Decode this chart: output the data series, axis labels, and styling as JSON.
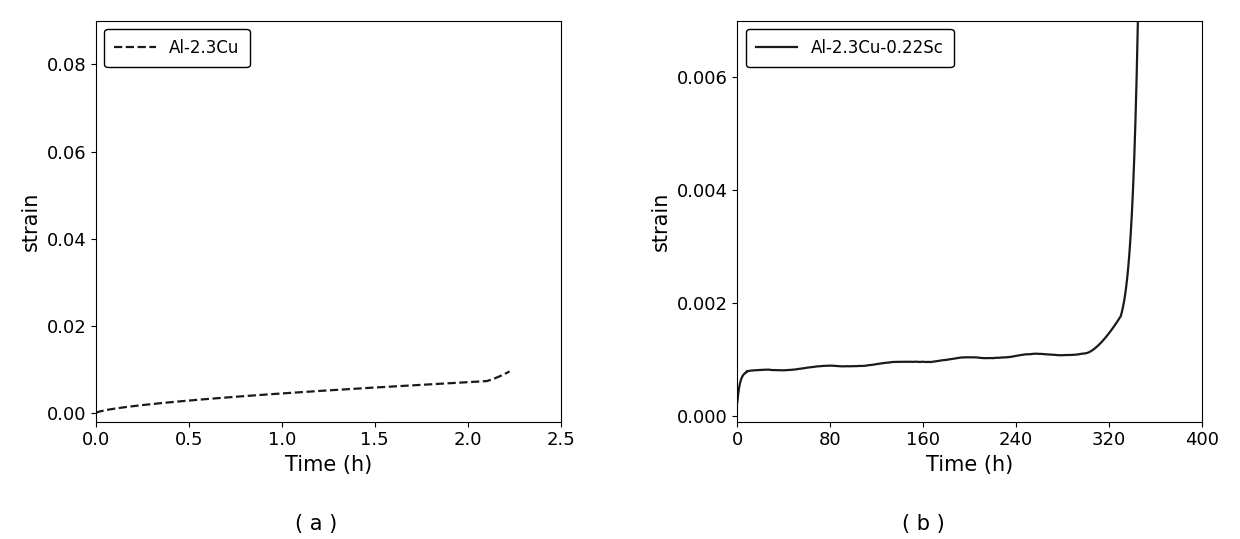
{
  "plot_a": {
    "label": "Al-2.3Cu",
    "linestyle": "dashed",
    "color": "#1a1a1a",
    "linewidth": 1.6,
    "xlim": [
      0.0,
      2.5
    ],
    "ylim": [
      -0.002,
      0.09
    ],
    "xticks": [
      0.0,
      0.5,
      1.0,
      1.5,
      2.0,
      2.5
    ],
    "yticks": [
      0.0,
      0.02,
      0.04,
      0.06,
      0.08
    ],
    "xlabel": "Time (h)",
    "ylabel": "strain",
    "label_fontsize": 15,
    "tick_fontsize": 13,
    "caption": "( a )"
  },
  "plot_b": {
    "label": "Al-2.3Cu-0.22Sc",
    "linestyle": "solid",
    "color": "#1a1a1a",
    "linewidth": 1.6,
    "xlim": [
      0,
      400
    ],
    "ylim": [
      -0.0001,
      0.007
    ],
    "xticks": [
      0,
      80,
      160,
      240,
      320,
      400
    ],
    "yticks": [
      0.0,
      0.002,
      0.004,
      0.006
    ],
    "xlabel": "Time (h)",
    "ylabel": "strain",
    "label_fontsize": 15,
    "tick_fontsize": 13,
    "caption": "( b )"
  }
}
